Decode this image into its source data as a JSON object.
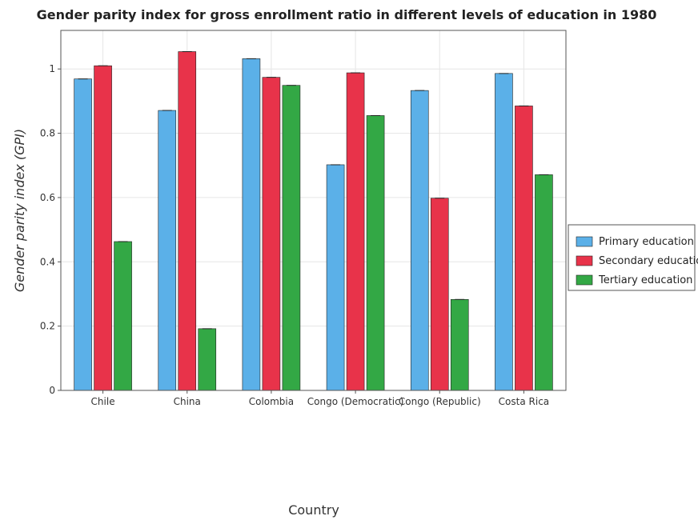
{
  "chart_data": {
    "type": "bar",
    "title": "Gender parity index for gross enrollment ratio in different levels of education in 1980",
    "xlabel": "Country",
    "ylabel": "Gender parity index (GPI)",
    "categories": [
      "Chile",
      "China",
      "Colombia",
      "Congo (Democratic)",
      "Congo (Republic)",
      "Costa Rica"
    ],
    "series": [
      {
        "name": "Primary education",
        "color": "#5bb0e8",
        "values": [
          0.969,
          0.871,
          1.032,
          0.702,
          0.933,
          0.986
        ]
      },
      {
        "name": "Secondary education",
        "color": "#e8334a",
        "values": [
          1.01,
          1.054,
          0.974,
          0.988,
          0.598,
          0.885
        ]
      },
      {
        "name": "Tertiary education",
        "color": "#33a845",
        "values": [
          0.463,
          0.192,
          0.949,
          0.855,
          0.283,
          0.671
        ]
      }
    ],
    "ylim": [
      0,
      1.12
    ],
    "yticks": [
      0,
      0.2,
      0.4,
      0.6,
      0.8,
      1
    ],
    "ytick_labels": [
      "0",
      "0.2",
      "0.4",
      "0.6",
      "0.8",
      "1"
    ],
    "grid": true,
    "legend_position": "right"
  }
}
